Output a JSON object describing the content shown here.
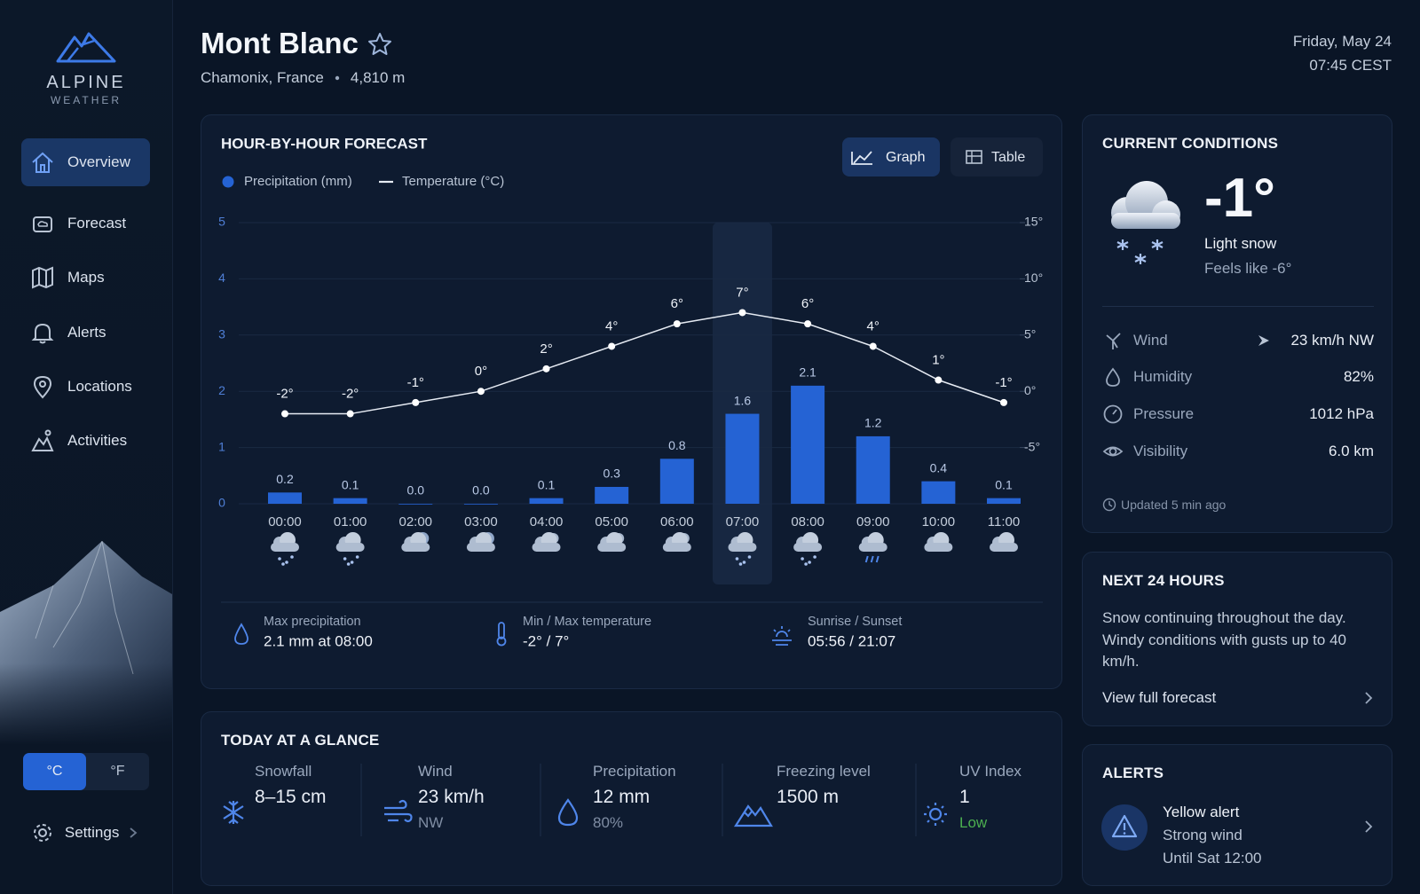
{
  "sidebar": {
    "brand": {
      "name": "ALPINE",
      "tagline": "WEATHER"
    },
    "nav": [
      "Overview",
      "Forecast",
      "Maps",
      "Alerts",
      "Locations",
      "Activities"
    ],
    "units": [
      "°C",
      "°F"
    ],
    "settings": "Settings"
  },
  "header": {
    "title": "Mont Blanc",
    "location": "Chamonix, France",
    "elevation": "4,810 m",
    "date": "Friday, May 24",
    "time": "07:45 CEST"
  },
  "forecast": {
    "title": "HOUR-BY-HOUR FORECAST",
    "views": [
      "Graph",
      "Table"
    ],
    "chart_data": {
      "type": "combo",
      "categories": [
        "00:00",
        "01:00",
        "02:00",
        "03:00",
        "04:00",
        "05:00",
        "06:00",
        "07:00",
        "08:00",
        "09:00",
        "10:00",
        "11:00"
      ],
      "series": [
        {
          "name": "Precipitation (mm)",
          "type": "bar",
          "color": "#2563d4",
          "values": [
            0.2,
            0.1,
            0.0,
            0.0,
            0.1,
            0.3,
            0.8,
            1.6,
            2.1,
            1.2,
            0.4,
            0.1
          ],
          "value_labels": [
            "0.2",
            "0.1",
            "0.0",
            "0.0",
            "0.1",
            "0.3",
            "0.8",
            "1.6",
            "2.1",
            "1.2",
            "0.4",
            "0.1"
          ]
        },
        {
          "name": "Temperature (°C)",
          "type": "line",
          "color": "#e6ebf3",
          "axis": "y2",
          "values": [
            -2,
            -2,
            -1,
            0,
            2,
            4,
            6,
            7,
            6,
            4,
            1,
            -1
          ],
          "value_labels": [
            "-2°",
            "-2°",
            "-1°",
            "0°",
            "2°",
            "4°",
            "6°",
            "7°",
            "6°",
            "4°",
            "1°",
            "-1°"
          ]
        }
      ],
      "ylim": [
        0,
        5
      ],
      "yticks": [
        0,
        1,
        2,
        3,
        4,
        5
      ],
      "y2lim": [
        -10,
        15
      ],
      "y2ticks": [
        {
          "value": 15,
          "label": "15°"
        },
        {
          "value": 10,
          "label": "10°"
        },
        {
          "value": 5,
          "label": "5°"
        },
        {
          "value": 0,
          "label": "0°"
        },
        {
          "value": -5,
          "label": "-5°"
        }
      ],
      "grid": true
    },
    "summary": [
      {
        "label": "Max precipitation",
        "value": "2.1 mm at 08:00"
      },
      {
        "label": "Min / Max temperature",
        "value": "-2° / 7°"
      },
      {
        "label": "Sunrise / Sunset",
        "value": "05:56 / 21:07"
      }
    ]
  },
  "current": {
    "title": "CURRENT CONDITIONS",
    "temperature": "-1°",
    "condition": "Light snow",
    "feels_like": "Feels like -6°",
    "rows": [
      {
        "label": "Wind",
        "value": "23 km/h NW"
      },
      {
        "label": "Humidity",
        "value": "82%"
      },
      {
        "label": "Pressure",
        "value": "1012 hPa"
      },
      {
        "label": "Visibility",
        "value": "6.0 km"
      }
    ],
    "updated": "Updated 5 min ago"
  },
  "next24": {
    "title": "NEXT 24 HOURS",
    "text": "Snow continuing throughout the day. Windy conditions with gusts up to 40 km/h.",
    "link": "View full forecast"
  },
  "alerts": {
    "title": "ALERTS",
    "level": "Yellow alert",
    "type": "Strong wind",
    "until": "Until Sat 12:00"
  },
  "glance": {
    "title": "TODAY AT A GLANCE",
    "items": [
      {
        "label": "Snowfall",
        "value": "8–15 cm"
      },
      {
        "label": "Wind",
        "value": "23 km/h",
        "detail": "NW"
      },
      {
        "label": "Precipitation",
        "value": "12 mm",
        "detail": "80%"
      },
      {
        "label": "Freezing level",
        "value": "1500 m"
      },
      {
        "label": "UV Index",
        "value": "1",
        "detail": "Low"
      }
    ]
  }
}
